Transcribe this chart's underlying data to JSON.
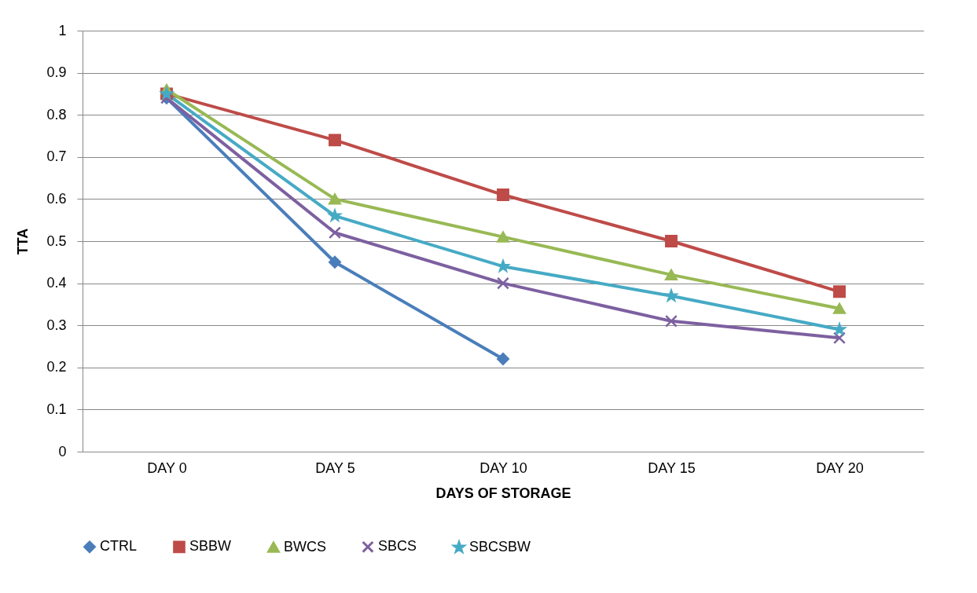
{
  "chart_data": {
    "type": "line",
    "xlabel": "DAYS OF STORAGE",
    "ylabel": "TTA",
    "categories": [
      "DAY 0",
      "DAY 5",
      "DAY 10",
      "DAY 15",
      "DAY 20"
    ],
    "series": [
      {
        "name": "CTRL",
        "color": "#4a7ebb",
        "marker": "diamond",
        "values": [
          0.84,
          0.45,
          0.22,
          null,
          null
        ]
      },
      {
        "name": "SBBW",
        "color": "#be4b48",
        "marker": "square",
        "values": [
          0.85,
          0.74,
          0.61,
          0.5,
          0.38
        ]
      },
      {
        "name": "BWCS",
        "color": "#98b954",
        "marker": "triangle",
        "values": [
          0.86,
          0.6,
          0.51,
          0.42,
          0.34
        ]
      },
      {
        "name": "SBCS",
        "color": "#7d60a0",
        "marker": "cross",
        "values": [
          0.84,
          0.52,
          0.4,
          0.31,
          0.27
        ]
      },
      {
        "name": "SBCSBW",
        "color": "#46aac5",
        "marker": "star",
        "values": [
          0.85,
          0.56,
          0.44,
          0.37,
          0.29
        ]
      }
    ],
    "ylim": [
      0,
      1
    ],
    "yticks": [
      {
        "value": 0,
        "label": "0"
      },
      0.1,
      0.2,
      0.3,
      0.4,
      0.5,
      0.6,
      0.7,
      0.8,
      0.9,
      {
        "value": 1,
        "label": "1"
      }
    ],
    "grid": "y",
    "legend": "bottom",
    "line_style": "solid"
  }
}
